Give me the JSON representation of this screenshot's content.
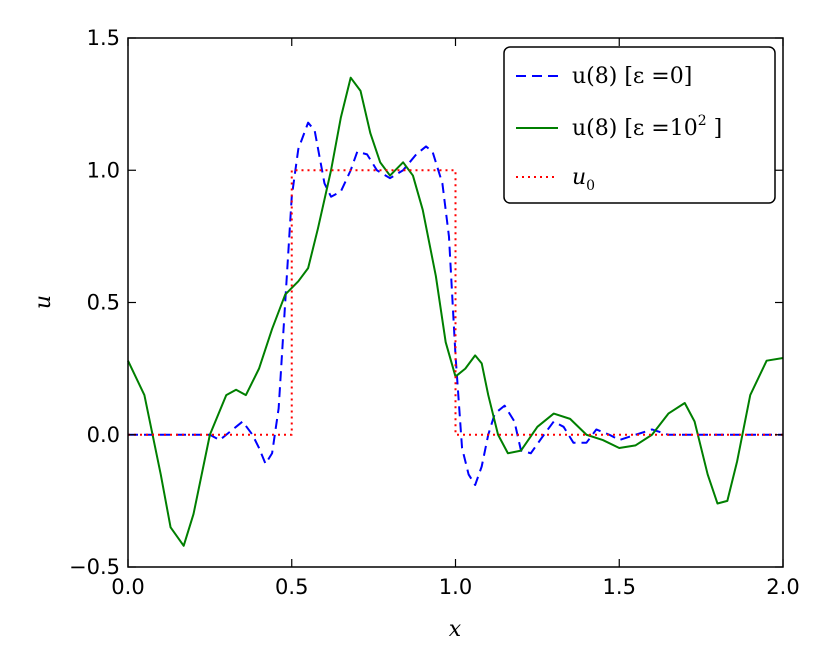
{
  "chart_data": {
    "type": "line",
    "title": "",
    "xlabel": "x",
    "ylabel": "u",
    "xlim": [
      0.0,
      2.0
    ],
    "ylim": [
      -0.5,
      1.5
    ],
    "x_ticks": [
      "0.0",
      "0.5",
      "1.0",
      "1.5",
      "2.0"
    ],
    "y_ticks": [
      "−0.5",
      "0.0",
      "0.5",
      "1.0",
      "1.5"
    ],
    "x_tick_values": [
      0.0,
      0.5,
      1.0,
      1.5,
      2.0
    ],
    "y_tick_values": [
      -0.5,
      0.0,
      0.5,
      1.0,
      1.5
    ],
    "grid": false,
    "legend_position": "top-right",
    "series": [
      {
        "name": "u(8) [ε =0]",
        "color": "#0000ff",
        "style": "dashed",
        "x": [
          0.0,
          0.05,
          0.1,
          0.15,
          0.2,
          0.25,
          0.28,
          0.3,
          0.33,
          0.35,
          0.38,
          0.4,
          0.42,
          0.44,
          0.46,
          0.48,
          0.5,
          0.52,
          0.55,
          0.57,
          0.6,
          0.62,
          0.65,
          0.68,
          0.7,
          0.73,
          0.76,
          0.8,
          0.84,
          0.88,
          0.91,
          0.93,
          0.96,
          0.98,
          1.0,
          1.02,
          1.04,
          1.06,
          1.08,
          1.1,
          1.12,
          1.15,
          1.18,
          1.2,
          1.23,
          1.27,
          1.3,
          1.33,
          1.36,
          1.4,
          1.43,
          1.47,
          1.5,
          1.55,
          1.6,
          1.65,
          1.7,
          1.75,
          1.8,
          1.85,
          1.9,
          1.95,
          2.0
        ],
        "values": [
          0.0,
          0.0,
          0.0,
          0.0,
          0.0,
          0.0,
          -0.02,
          0.0,
          0.03,
          0.05,
          0.0,
          -0.05,
          -0.11,
          -0.07,
          0.1,
          0.5,
          0.9,
          1.08,
          1.18,
          1.15,
          0.95,
          0.9,
          0.92,
          1.0,
          1.07,
          1.06,
          1.0,
          0.97,
          1.0,
          1.06,
          1.09,
          1.07,
          0.95,
          0.75,
          0.3,
          -0.05,
          -0.15,
          -0.19,
          -0.12,
          0.0,
          0.08,
          0.11,
          0.05,
          -0.06,
          -0.07,
          0.0,
          0.05,
          0.03,
          -0.03,
          -0.03,
          0.02,
          0.0,
          -0.02,
          0.0,
          0.02,
          0.0,
          0.0,
          0.0,
          0.0,
          0.0,
          0.0,
          0.0,
          0.0
        ]
      },
      {
        "name": "u(8) [ε =10² ]",
        "color": "#007f00",
        "style": "solid",
        "x": [
          0.0,
          0.05,
          0.1,
          0.13,
          0.17,
          0.2,
          0.25,
          0.3,
          0.33,
          0.36,
          0.4,
          0.44,
          0.48,
          0.52,
          0.55,
          0.58,
          0.62,
          0.65,
          0.68,
          0.71,
          0.74,
          0.77,
          0.8,
          0.84,
          0.87,
          0.9,
          0.94,
          0.97,
          1.0,
          1.03,
          1.06,
          1.08,
          1.1,
          1.13,
          1.16,
          1.2,
          1.25,
          1.3,
          1.35,
          1.4,
          1.45,
          1.5,
          1.55,
          1.6,
          1.65,
          1.7,
          1.73,
          1.77,
          1.8,
          1.83,
          1.86,
          1.9,
          1.95,
          2.0
        ],
        "values": [
          0.28,
          0.15,
          -0.15,
          -0.35,
          -0.42,
          -0.3,
          0.0,
          0.15,
          0.17,
          0.15,
          0.25,
          0.4,
          0.53,
          0.58,
          0.63,
          0.78,
          1.0,
          1.2,
          1.35,
          1.3,
          1.14,
          1.03,
          0.98,
          1.03,
          0.98,
          0.85,
          0.6,
          0.35,
          0.22,
          0.25,
          0.3,
          0.27,
          0.15,
          0.0,
          -0.07,
          -0.06,
          0.03,
          0.08,
          0.06,
          0.0,
          -0.02,
          -0.05,
          -0.04,
          0.0,
          0.08,
          0.12,
          0.05,
          -0.15,
          -0.26,
          -0.25,
          -0.1,
          0.15,
          0.28,
          0.29
        ]
      },
      {
        "name": "u₀",
        "color": "#ff0000",
        "style": "dotted",
        "x": [
          0.0,
          0.5,
          0.5,
          1.0,
          1.0,
          2.0
        ],
        "values": [
          0.0,
          0.0,
          1.0,
          1.0,
          0.0,
          0.0
        ]
      }
    ]
  },
  "legend": {
    "entry1": {
      "main": "u(8) [ε =0]"
    },
    "entry2": {
      "main": "u(8) [ε =10",
      "sup": "2",
      "tail": " ]"
    },
    "entry3": {
      "main": "u",
      "sub": "0"
    }
  }
}
